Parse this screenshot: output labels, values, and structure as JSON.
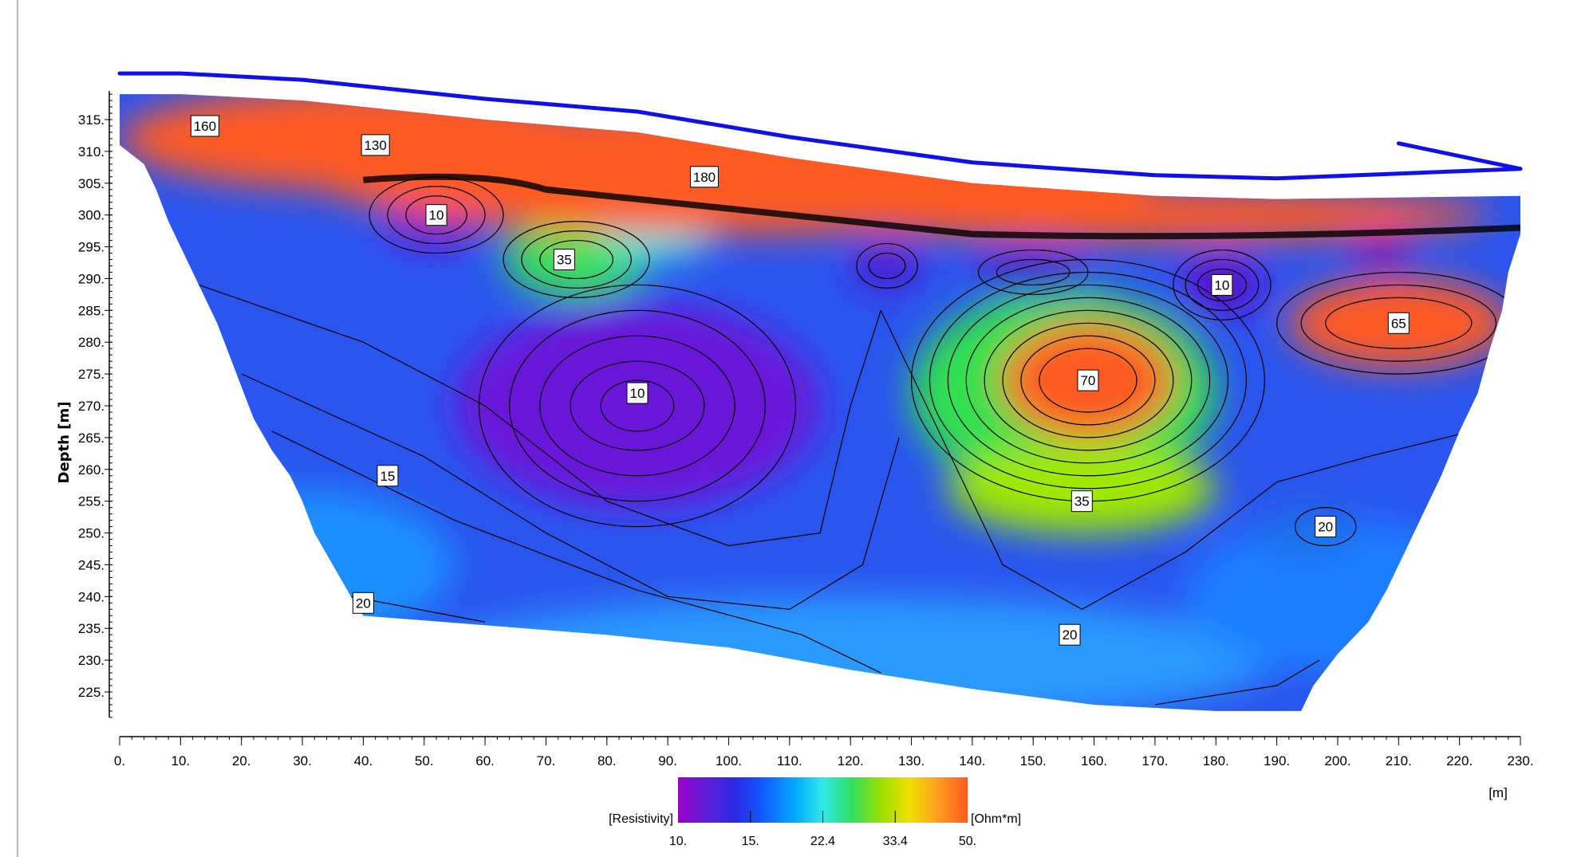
{
  "chart_data": {
    "type": "heatmap",
    "title": "",
    "ylabel": "Depth [m]",
    "xlabel": "",
    "x_unit": "[m]",
    "xlim": [
      0,
      230
    ],
    "ylim": [
      222,
      319
    ],
    "x_tick_labels": [
      "0.",
      "10.",
      "20.",
      "30.",
      "40.",
      "50.",
      "60.",
      "70.",
      "80.",
      "90.",
      "100.",
      "110.",
      "120.",
      "130.",
      "140.",
      "150.",
      "160.",
      "170.",
      "180.",
      "190.",
      "200.",
      "210.",
      "220.",
      "230."
    ],
    "x_tick_values": [
      0,
      10,
      20,
      30,
      40,
      50,
      60,
      70,
      80,
      90,
      100,
      110,
      120,
      130,
      140,
      150,
      160,
      170,
      180,
      190,
      200,
      210,
      220,
      230
    ],
    "y_tick_labels": [
      "315.",
      "310.",
      "305.",
      "300.",
      "295.",
      "290.",
      "285.",
      "280.",
      "275.",
      "270.",
      "265.",
      "260.",
      "255.",
      "250.",
      "245.",
      "240.",
      "235.",
      "230.",
      "225."
    ],
    "y_tick_values": [
      315,
      310,
      305,
      300,
      295,
      290,
      285,
      280,
      275,
      270,
      265,
      260,
      255,
      250,
      245,
      240,
      235,
      230,
      225
    ],
    "colorbar": {
      "label_left": "[Resistivity]",
      "label_right": "[Ohm*m]",
      "tick_labels": [
        "10.",
        "15.",
        "22.4",
        "33.4",
        "50."
      ],
      "tick_values": [
        10,
        15,
        22.4,
        33.4,
        50
      ],
      "colors": [
        "#9a00c8",
        "#5a1fd8",
        "#2a2ae6",
        "#1060ff",
        "#00a8ff",
        "#30e8e8",
        "#30e060",
        "#9ae000",
        "#f0e000",
        "#ff9a20",
        "#ff5a20"
      ]
    },
    "contour_labels": [
      {
        "text": "160",
        "x": 14,
        "y": 314,
        "value": 160
      },
      {
        "text": "130",
        "x": 42,
        "y": 311,
        "value": 130
      },
      {
        "text": "180",
        "x": 96,
        "y": 306,
        "value": 180
      },
      {
        "text": "10",
        "x": 52,
        "y": 300,
        "value": 10
      },
      {
        "text": "35",
        "x": 73,
        "y": 293,
        "value": 35
      },
      {
        "text": "10",
        "x": 181,
        "y": 289,
        "value": 10
      },
      {
        "text": "65",
        "x": 210,
        "y": 283,
        "value": 65
      },
      {
        "text": "70",
        "x": 159,
        "y": 274,
        "value": 70
      },
      {
        "text": "10",
        "x": 85,
        "y": 272,
        "value": 10
      },
      {
        "text": "15",
        "x": 44,
        "y": 259,
        "value": 15
      },
      {
        "text": "35",
        "x": 158,
        "y": 255,
        "value": 35
      },
      {
        "text": "20",
        "x": 198,
        "y": 251,
        "value": 20
      },
      {
        "text": "20",
        "x": 40,
        "y": 239,
        "value": 20
      },
      {
        "text": "20",
        "x": 156,
        "y": 234,
        "value": 20
      }
    ],
    "surface_line": [
      [
        0,
        319
      ],
      [
        10,
        319
      ],
      [
        30,
        318
      ],
      [
        60,
        315
      ],
      [
        85,
        313
      ],
      [
        110,
        309
      ],
      [
        140,
        305
      ],
      [
        170,
        303
      ],
      [
        190,
        302.5
      ],
      [
        230,
        304
      ],
      [
        210,
        308
      ]
    ]
  },
  "colors": {
    "surface_line": "#1010e8",
    "background": "#ffffff"
  }
}
